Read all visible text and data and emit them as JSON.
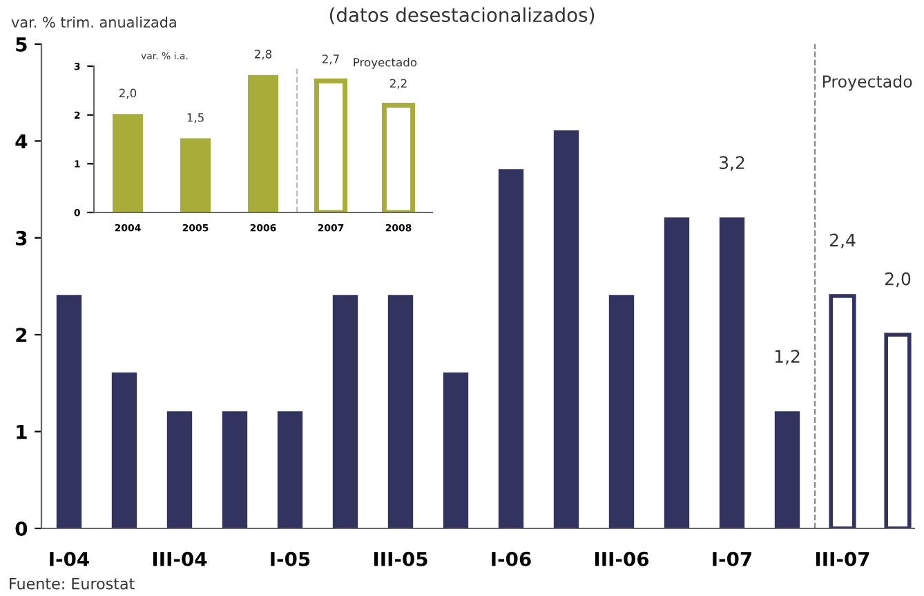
{
  "chart_data": [
    {
      "type": "bar",
      "subtitle": "(datos desestacionalizados)",
      "ylabel": "var. % trim. anualizada",
      "categories": [
        "I-04",
        null,
        "III-04",
        null,
        "I-05",
        null,
        "III-05",
        null,
        "I-06",
        null,
        "III-06",
        null,
        "I-07",
        null,
        "III-07",
        null
      ],
      "series": [
        {
          "color": "#333360",
          "values": [
            2.4,
            1.6,
            1.2,
            1.2,
            1.2,
            2.4,
            2.4,
            1.6,
            3.7,
            4.1,
            2.4,
            3.2,
            3.2,
            1.2,
            null,
            null
          ],
          "value_labels": [
            null,
            null,
            null,
            null,
            null,
            null,
            null,
            null,
            null,
            null,
            null,
            null,
            "3,2",
            "1,2",
            null,
            null
          ]
        },
        {
          "color": "#333360",
          "values": [
            null,
            null,
            null,
            null,
            null,
            null,
            null,
            null,
            null,
            null,
            null,
            null,
            null,
            null,
            2.4,
            2.0
          ],
          "value_labels": [
            null,
            null,
            null,
            null,
            null,
            null,
            null,
            null,
            null,
            null,
            null,
            null,
            null,
            null,
            "2,4",
            "2,0"
          ]
        }
      ],
      "ylim": [
        0,
        5
      ],
      "yticks": [
        0,
        1,
        2,
        3,
        4,
        5
      ],
      "grid": false,
      "legend": false,
      "annotations": [
        "Proyectado",
        "Fuente: Eurostat"
      ]
    },
    {
      "type": "bar",
      "ylabel": "var. % i.a.",
      "categories": [
        "2004",
        "2005",
        "2006",
        "2007",
        "2008"
      ],
      "series": [
        {
          "color": "#a8ad3a",
          "values": [
            2.0,
            1.5,
            2.8,
            null,
            null
          ],
          "value_labels": [
            "2,0",
            "1,5",
            "2,8",
            null,
            null
          ]
        },
        {
          "color": "#a8ad3a",
          "values": [
            null,
            null,
            null,
            2.7,
            2.2
          ],
          "value_labels": [
            null,
            null,
            null,
            "2,7",
            "2,2"
          ]
        }
      ],
      "ylim": [
        0,
        3
      ],
      "yticks": [
        0,
        1,
        2,
        3
      ],
      "grid": false,
      "legend": false,
      "annotations": [
        "Proyectado"
      ]
    }
  ]
}
